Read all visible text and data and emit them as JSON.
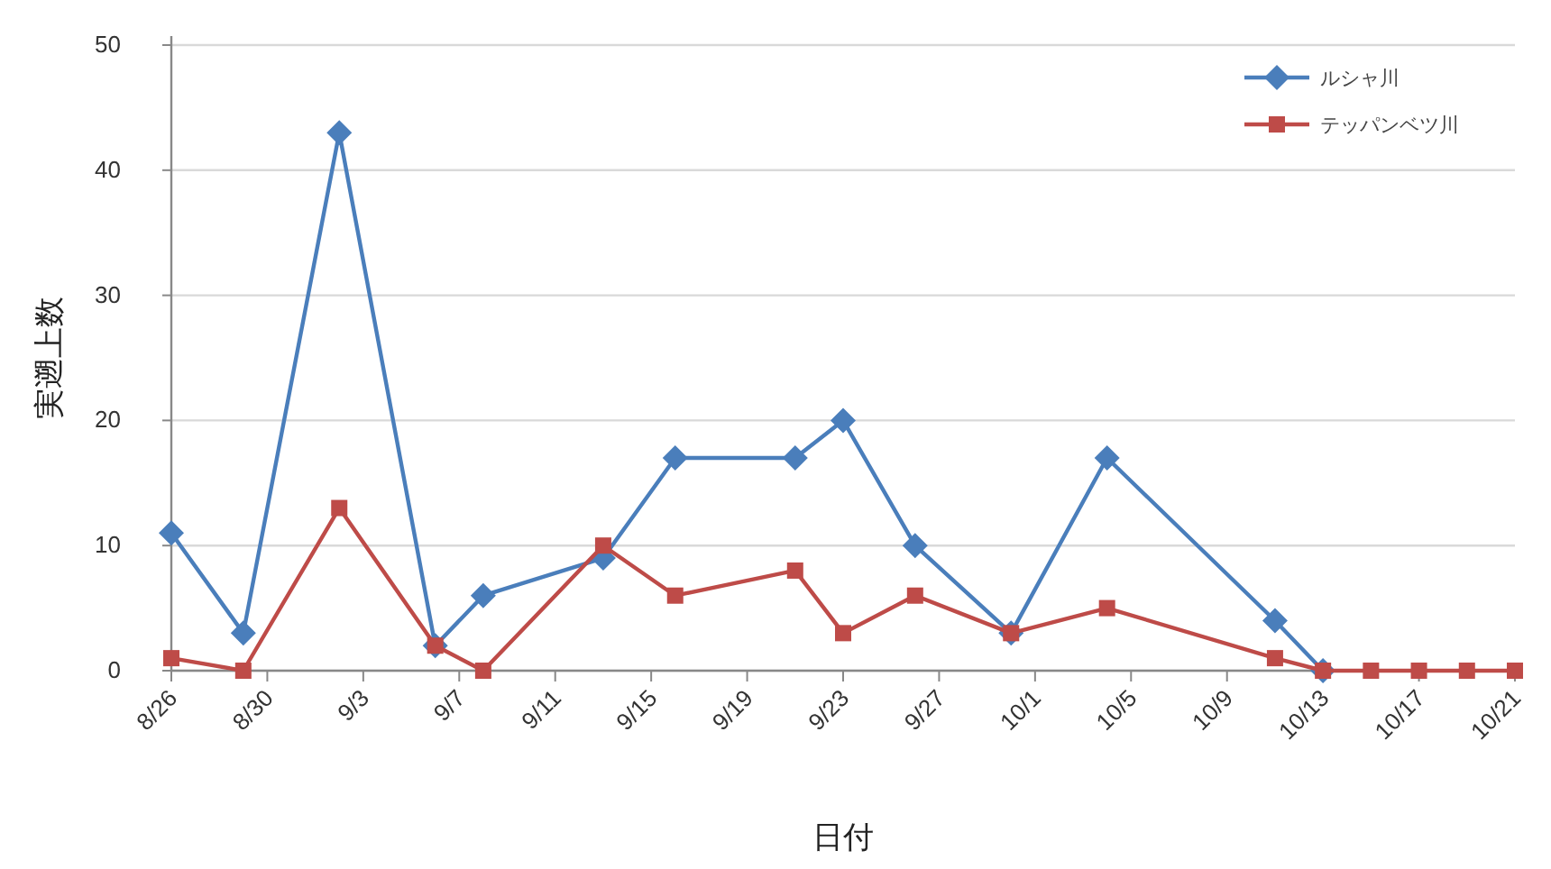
{
  "chart_data": {
    "type": "line",
    "xlabel": "日付",
    "ylabel": "実遡上数",
    "xlim": [
      "--08-26",
      "--10-21"
    ],
    "xticks": [
      {
        "value": "--08-26",
        "label": "8/26"
      },
      {
        "value": "--08-30",
        "label": "8/30"
      },
      {
        "value": "--09-03",
        "label": "9/3"
      },
      {
        "value": "--09-07",
        "label": "9/7"
      },
      {
        "value": "--09-11",
        "label": "9/11"
      },
      {
        "value": "--09-15",
        "label": "9/15"
      },
      {
        "value": "--09-19",
        "label": "9/19"
      },
      {
        "value": "--09-23",
        "label": "9/23"
      },
      {
        "value": "--09-27",
        "label": "9/27"
      },
      {
        "value": "--10-01",
        "label": "10/1"
      },
      {
        "value": "--10-05",
        "label": "10/5"
      },
      {
        "value": "--10-09",
        "label": "10/9"
      },
      {
        "value": "--10-13",
        "label": "10/13"
      },
      {
        "value": "--10-17",
        "label": "10/17"
      },
      {
        "value": "--10-21",
        "label": "10/21"
      }
    ],
    "ylim": [
      0,
      50
    ],
    "yticks": [
      0,
      10,
      20,
      30,
      40,
      50
    ],
    "grid": "y",
    "legend": "top right",
    "line_style": "solid",
    "series": [
      {
        "name": "ルシャ川",
        "color": "#4a7ebb",
        "marker": "diamond",
        "x": [
          "--08-26",
          "--08-29",
          "--09-02",
          "--09-06",
          "--09-08",
          "--09-13",
          "--09-16",
          "--09-21",
          "--09-23",
          "--09-26",
          "--09-30",
          "--10-04",
          "--10-11",
          "--10-13"
        ],
        "values": [
          11,
          3,
          43,
          2,
          6,
          9,
          17,
          17,
          20,
          10,
          3,
          17,
          4,
          0
        ]
      },
      {
        "name": "テッパンベツ川",
        "color": "#be4b48",
        "marker": "square",
        "x": [
          "--08-26",
          "--08-29",
          "--09-02",
          "--09-06",
          "--09-08",
          "--09-13",
          "--09-16",
          "--09-21",
          "--09-23",
          "--09-26",
          "--09-30",
          "--10-04",
          "--10-11",
          "--10-13",
          "--10-15",
          "--10-17",
          "--10-19",
          "--10-21"
        ],
        "values": [
          1,
          0,
          13,
          2,
          0,
          10,
          6,
          8,
          3,
          6,
          3,
          5,
          1,
          0,
          0,
          0,
          0,
          0
        ]
      }
    ]
  }
}
